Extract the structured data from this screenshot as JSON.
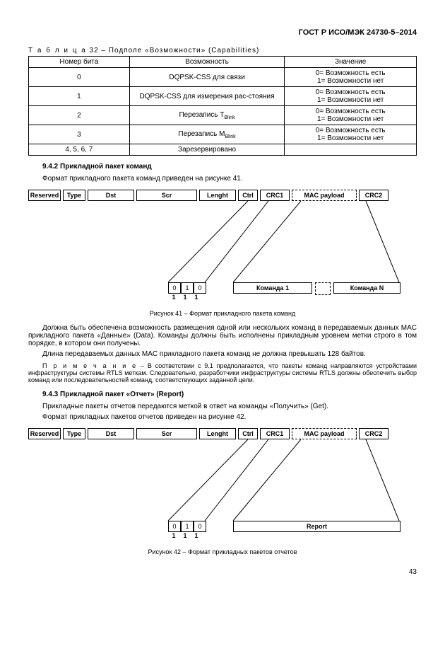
{
  "header": "ГОСТ Р ИСО/МЭК 24730-5–2014",
  "table32": {
    "caption_prefix": "Т а б л и ц а",
    "caption": " 32 – Подполе «Возможности» (Capabilities)",
    "headers": [
      "Номер бита",
      "Возможность",
      "Значение"
    ],
    "rows": [
      {
        "bit": "0",
        "cap": "DQPSK-CSS для связи",
        "val0": "0= Возможность есть",
        "val1": "1= Возможности нет"
      },
      {
        "bit": "1",
        "cap": "DQPSK-CSS для измерения рас-стояния",
        "val0": "0= Возможность есть",
        "val1": "1= Возможности нет"
      },
      {
        "bit": "2",
        "cap_html": "Перезапись T",
        "cap_sub": "Blink",
        "val0": "0= Возможность есть",
        "val1": "1= Возможности нет"
      },
      {
        "bit": "3",
        "cap_html": "Перезапись M",
        "cap_sub": "Blink",
        "val0": "0= Возможность есть",
        "val1": "1= Возможности нет"
      },
      {
        "bit": "4, 5, 6, 7",
        "cap": "Зарезервировано",
        "val0": "",
        "val1": ""
      }
    ]
  },
  "sec942": {
    "title": "9.4.2 Прикладной пакет команд",
    "intro": "Формат прикладного пакета команд приведен на рисунке 41."
  },
  "pkt_fields": [
    "Reserved",
    "Type",
    "Dst",
    "Scr",
    "Lenght",
    "Ctrl",
    "CRC1",
    "MAC payload",
    "CRC2"
  ],
  "pkt_widths": [
    46,
    32,
    66,
    86,
    52,
    28,
    42,
    92,
    42
  ],
  "ctrl_bits": [
    "0",
    "1",
    "0"
  ],
  "ctrl_labels": [
    "1",
    "1",
    "1"
  ],
  "fig41": {
    "cmd1": "Команда 1",
    "cmdN": "Команда N",
    "caption": "Рисунок 41 – Формат прикладного пакета команд"
  },
  "para1": "Должна быть обеспечена возможность размещения одной или нескольких команд в передаваемых данных MAC прикладного пакета «Данные» (Data). Команды должны быть исполнены прикладным уровнем метки строго в том порядке, в котором они получены.",
  "para2": "Длина передаваемых данных MAC прикладного пакета команд не должна превышать 128 байтов.",
  "note_prefix": "П р и м е ч а н и е",
  "note": " – В соответствии с 9.1 предполагается, что пакеты команд направляются устройствами инфраструктуры системы RTLS меткам. Следовательно, разработчики инфраструктуры системы RTLS должны обеспечить выбор команд или последовательностей команд, соответствующих заданной цели.",
  "sec943": {
    "title": "9.4.3 Прикладной пакет «Отчет» (Report)",
    "p1": "Прикладные пакеты отчетов передаются меткой в ответ на команды «Получить» (Get).",
    "p2": "Формат прикладных пакетов отчетов приведен на рисунке 42."
  },
  "fig42": {
    "report": "Report",
    "caption": "Рисунок 42 – Формат прикладных пакетов отчетов"
  },
  "page": "43"
}
